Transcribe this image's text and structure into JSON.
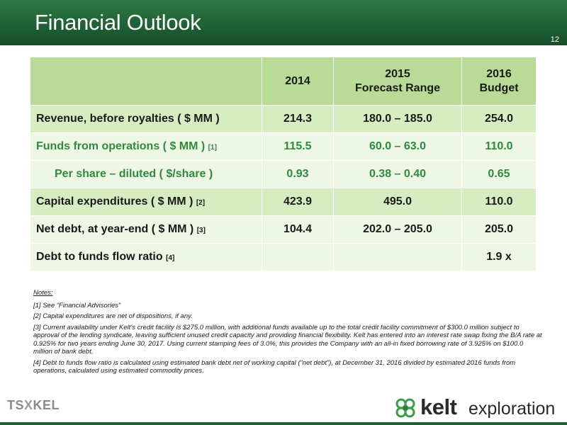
{
  "header": {
    "title": "Financial Outlook",
    "page_number": "12"
  },
  "table": {
    "columns": [
      {
        "line1": "2014",
        "line2": ""
      },
      {
        "line1": "2015",
        "line2": "Forecast Range"
      },
      {
        "line1": "2016",
        "line2": "Budget"
      }
    ],
    "rows": [
      {
        "label": "Revenue, before royalties ( $ MM )",
        "footnote": "",
        "values": [
          "214.3",
          "180.0 – 185.0",
          "254.0"
        ]
      },
      {
        "label": "Funds from operations ( $ MM )",
        "footnote": "[1]",
        "values": [
          "115.5",
          "60.0 – 63.0",
          "110.0"
        ]
      },
      {
        "label": "Per share – diluted ( $/share )",
        "footnote": "",
        "values": [
          "0.93",
          "0.38 – 0.40",
          "0.65"
        ]
      },
      {
        "label": "Capital expenditures ( $ MM )",
        "footnote": "[2]",
        "values": [
          "423.9",
          "495.0",
          "110.0"
        ]
      },
      {
        "label": "Net debt, at year-end ( $ MM )",
        "footnote": "[3]",
        "values": [
          "104.4",
          "202.0 – 205.0",
          "205.0"
        ]
      },
      {
        "label": "Debt to funds flow ratio",
        "footnote": "[4]",
        "values": [
          "",
          "",
          "1.9 x"
        ]
      }
    ]
  },
  "notes": {
    "title": "Notes:",
    "items": [
      "[1] See “Financial Advisories”",
      "[2] Capital expenditures are net of dispositions, if any.",
      "[3] Current availability under Kelt’s credit facility is $275.0 million, with additional funds available up to the total credit facility commitment of $300.0 million subject to approval of the lending syndicate, leaving sufficient unused credit capacity and providing financial flexibility. Kelt has entered into an interest rate swap fixing the B/A rate at 0.925% for two years ending June 30, 2017. Using current stamping fees of 3.0%, this provides the Company with an all-in fixed borrowing rate of 3.925% on $100.0 million of bank debt.",
      "[4] Debt to funds flow ratio is calculated using estimated bank debt net of working capital (“net debt”), at December 31, 2016 divided by estimated 2016 funds from operations, calculated using estimated commodity prices."
    ]
  },
  "footer": {
    "exchange_left": "TS",
    "exchange_x": "X",
    "exchange_right": "KEL",
    "brand": "kelt",
    "brand_sub": "exploration"
  },
  "colors": {
    "header_green": "#1f6134",
    "row_dark": "#d6edc2",
    "row_light": "#edf7e4",
    "green_text": "#2e8b3d"
  }
}
